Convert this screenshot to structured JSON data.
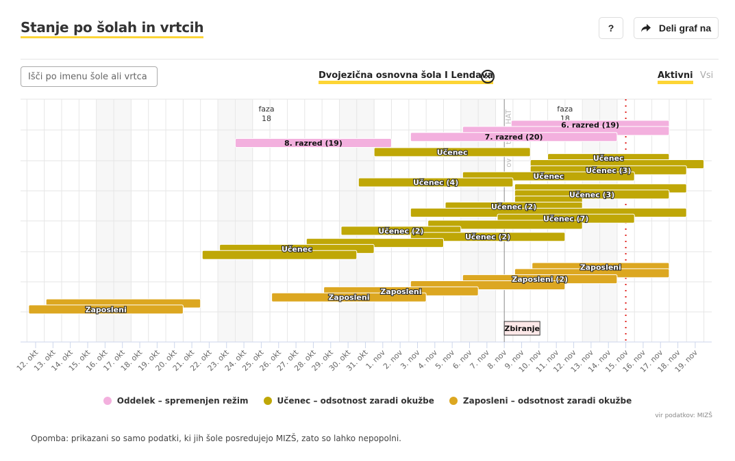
{
  "header": {
    "title": "Stanje po šolah in vrtcih",
    "help_label": "?",
    "share_label": "Deli graf na",
    "share_icon": "share-arrow-icon"
  },
  "filters": {
    "search_placeholder": "Išči po imenu šole ali vrtca",
    "search_value": "",
    "selected_school": "Dvojezična osnovna šola I Lendava",
    "clear_icon": "close-circle-icon",
    "toggle_active": "Aktivni",
    "toggle_all": "Vsi"
  },
  "chart_data": {
    "type": "gantt",
    "x_start_label": "12. okt",
    "x_ticks": [
      "12. okt",
      "13. okt",
      "14. okt",
      "15. okt",
      "16. okt",
      "17. okt",
      "18. okt",
      "19. okt",
      "20. okt",
      "21. okt",
      "22. okt",
      "23. okt",
      "24. okt",
      "25. okt",
      "26. okt",
      "27. okt",
      "28. okt",
      "29. okt",
      "30. okt",
      "31. okt",
      "1. nov",
      "2. nov",
      "3. nov",
      "4. nov",
      "5. nov",
      "6. nov",
      "7. nov",
      "8. nov",
      "9. nov",
      "10. nov",
      "11. nov",
      "12. nov",
      "13. nov",
      "14. nov",
      "15. nov",
      "16. nov",
      "17. nov",
      "18. nov",
      "19. nov"
    ],
    "weekends": [
      [
        4,
        6
      ],
      [
        11,
        13
      ],
      [
        18,
        20
      ],
      [
        25,
        27
      ],
      [
        32,
        34
      ]
    ],
    "annotations": [
      {
        "type": "text",
        "label": "faza",
        "sublabel": "18",
        "day": 13.3
      },
      {
        "type": "text",
        "label": "faza",
        "sublabel": "18",
        "day": 30.5
      },
      {
        "type": "vline",
        "label": "Zbiranje",
        "vertical_text": "ov ... n te ... ra ... HAT",
        "day": 27,
        "color": "#888888"
      },
      {
        "type": "vline-dotted",
        "label": "today",
        "day": 34,
        "color": "#e0201c"
      }
    ],
    "series": [
      {
        "name": "Oddelek – spremenjen režim",
        "color": "#f3b0de"
      },
      {
        "name": "Učenec – odsotnost zaradi okužbe",
        "color": "#bfa707"
      },
      {
        "name": "Zaposleni – odsotnost zaradi okužbe",
        "color": "#dca721"
      }
    ],
    "bars": [
      {
        "series": 0,
        "start": 27.4,
        "end": 36.5,
        "lane": 0,
        "label": "6. razred (19)"
      },
      {
        "series": 0,
        "start": 24.6,
        "end": 36.5,
        "lane": 1,
        "label": ""
      },
      {
        "series": 0,
        "start": 21.6,
        "end": 33.5,
        "lane": 2,
        "label": "7. razred (20)"
      },
      {
        "series": 0,
        "start": 11.5,
        "end": 20.5,
        "lane": 3,
        "label": "8. razred (19)"
      },
      {
        "series": 1,
        "start": 19.5,
        "end": 28.5,
        "lane": 4.5,
        "label": "Učenec"
      },
      {
        "series": 1,
        "start": 29.5,
        "end": 36.5,
        "lane": 5.5,
        "label": "Učenec"
      },
      {
        "series": 1,
        "start": 28.5,
        "end": 38.5,
        "lane": 6.5,
        "label": ""
      },
      {
        "series": 1,
        "start": 28.5,
        "end": 37.5,
        "lane": 7.5,
        "label": "Učenec (3)"
      },
      {
        "series": 1,
        "start": 24.6,
        "end": 34.5,
        "lane": 8.5,
        "label": "Učenec"
      },
      {
        "series": 1,
        "start": 18.6,
        "end": 27.5,
        "lane": 9.5,
        "label": "Učenec (4)"
      },
      {
        "series": 1,
        "start": 27.6,
        "end": 37.5,
        "lane": 10.5,
        "label": ""
      },
      {
        "series": 1,
        "start": 27.6,
        "end": 36.5,
        "lane": 11.5,
        "label": "Učenec (3)"
      },
      {
        "series": 1,
        "start": 27.6,
        "end": 31.5,
        "lane": 12.5,
        "label": ""
      },
      {
        "series": 1,
        "start": 23.6,
        "end": 31.5,
        "lane": 13.5,
        "label": "Učenec (2)"
      },
      {
        "series": 1,
        "start": 21.6,
        "end": 37.5,
        "lane": 14.5,
        "label": ""
      },
      {
        "series": 1,
        "start": 26.6,
        "end": 34.5,
        "lane": 15.5,
        "label": "Učenec (7)"
      },
      {
        "series": 1,
        "start": 22.6,
        "end": 31.5,
        "lane": 16.5,
        "label": ""
      },
      {
        "series": 1,
        "start": 17.6,
        "end": 24.5,
        "lane": 17.5,
        "label": "Učenec (2)"
      },
      {
        "series": 1,
        "start": 21.6,
        "end": 30.5,
        "lane": 18.5,
        "label": "Učenec (2)"
      },
      {
        "series": 1,
        "start": 15.6,
        "end": 23.5,
        "lane": 19.5,
        "label": ""
      },
      {
        "series": 1,
        "start": 10.6,
        "end": 19.5,
        "lane": 20.5,
        "label": "Učenec"
      },
      {
        "series": 1,
        "start": 9.6,
        "end": 18.5,
        "lane": 21.5,
        "label": ""
      },
      {
        "series": 2,
        "start": 28.6,
        "end": 36.5,
        "lane": 23.5,
        "label": "Zaposleni"
      },
      {
        "series": 2,
        "start": 27.6,
        "end": 36.5,
        "lane": 24.5,
        "label": ""
      },
      {
        "series": 2,
        "start": 24.6,
        "end": 33.5,
        "lane": 25.5,
        "label": "Zaposleni (2)"
      },
      {
        "series": 2,
        "start": 21.6,
        "end": 30.5,
        "lane": 26.5,
        "label": ""
      },
      {
        "series": 2,
        "start": 16.6,
        "end": 25.5,
        "lane": 27.5,
        "label": "Zaposleni"
      },
      {
        "series": 2,
        "start": 13.6,
        "end": 22.5,
        "lane": 28.5,
        "label": "Zaposleni"
      },
      {
        "series": 2,
        "start": 0.6,
        "end": 9.5,
        "lane": 29.5,
        "label": ""
      },
      {
        "series": 2,
        "start": -0.4,
        "end": 8.5,
        "lane": 30.5,
        "label": "Zaposleni"
      }
    ]
  },
  "legend": [
    {
      "label": "Oddelek – spremenjen režim",
      "color": "#f3b0de"
    },
    {
      "label": "Učenec – odsotnost zaradi okužbe",
      "color": "#bfa707"
    },
    {
      "label": "Zaposleni – odsotnost zaradi okužbe",
      "color": "#dca721"
    }
  ],
  "footer": {
    "source": "vir podatkov: MIZŠ",
    "note": "Opomba: prikazani so samo podatki, ki jih šole posredujejo MIZŠ, zato so lahko nepopolni."
  }
}
